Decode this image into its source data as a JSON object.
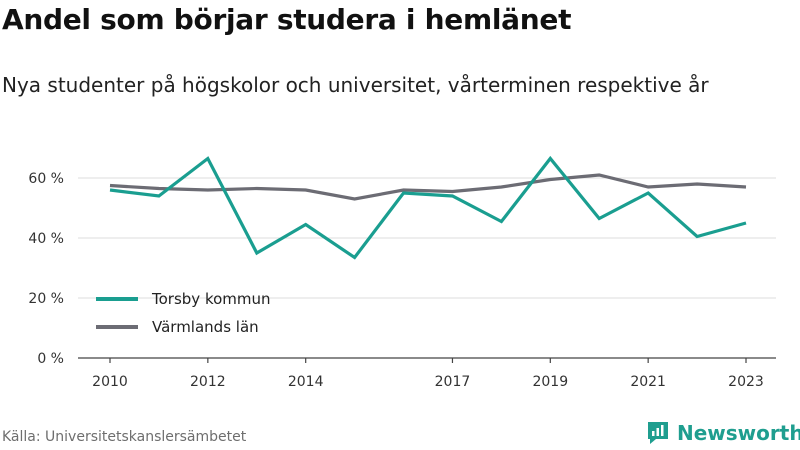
{
  "title": "Andel som börjar studera i hemlänet",
  "subtitle": "Nya studenter på högskolor och universitet, vårterminen respektive år",
  "source": "Källa: Universitetskanslersämbetet",
  "brand": "Newsworthy",
  "colors": {
    "torsby": "#1a9e90",
    "varmland": "#6c6c74",
    "grid": "#dcdcdc",
    "axis": "#444444",
    "brand": "#1f9e8f"
  },
  "chart_data": {
    "type": "line",
    "x": [
      2010,
      2011,
      2012,
      2013,
      2014,
      2015,
      2016,
      2017,
      2018,
      2019,
      2020,
      2021,
      2022,
      2023
    ],
    "xticks": [
      2010,
      2012,
      2014,
      2017,
      2019,
      2021,
      2023
    ],
    "yticks": [
      0,
      20,
      40,
      60
    ],
    "ytick_labels": [
      "0 %",
      "20 %",
      "40 %",
      "60 %"
    ],
    "xlim": [
      2010,
      2023
    ],
    "ylim": [
      0,
      70
    ],
    "grid": true,
    "legend_position": "bottom-left",
    "series": [
      {
        "name": "Torsby kommun",
        "color": "#1a9e90",
        "values": [
          56,
          54,
          66.5,
          35,
          44.5,
          33.5,
          55,
          54,
          45.5,
          66.5,
          46.5,
          55,
          40.5,
          45
        ]
      },
      {
        "name": "Värmlands län",
        "color": "#6c6c74",
        "values": [
          57.5,
          56.5,
          56,
          56.5,
          56,
          53,
          56,
          55.5,
          57,
          59.5,
          61,
          57,
          58,
          57
        ]
      }
    ]
  }
}
